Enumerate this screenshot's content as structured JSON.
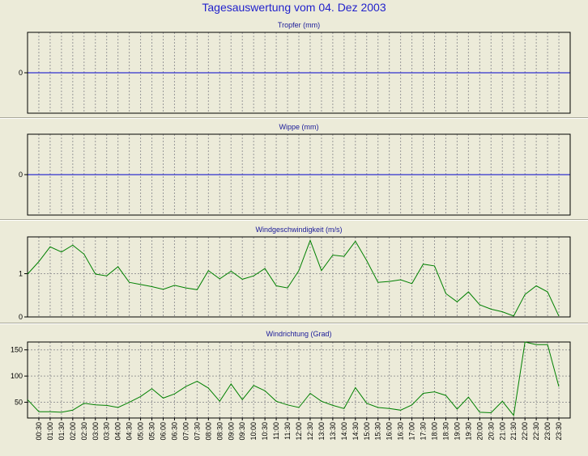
{
  "title": "Tagesauswertung vom 04. Dez 2003",
  "colors": {
    "title": "#2222cc",
    "zero_line": "#0000cc",
    "series": "#008000",
    "grid": "#999999",
    "background": "#ecebd9"
  },
  "chart_data": [
    {
      "type": "line",
      "title": "Tropfer (mm)",
      "ylim": [
        -1,
        1
      ],
      "yticks": [
        0
      ],
      "grid": true,
      "series": [
        {
          "values": [
            0,
            0
          ]
        }
      ]
    },
    {
      "type": "line",
      "title": "Wippe (mm)",
      "ylim": [
        -1,
        1
      ],
      "yticks": [
        0
      ],
      "grid": true,
      "series": [
        {
          "values": [
            0,
            0
          ]
        }
      ]
    },
    {
      "type": "line",
      "title": "Windgeschwindigkeit (m/s)",
      "ylim": [
        0,
        1.85
      ],
      "yticks": [
        0,
        1
      ],
      "grid": true,
      "series": [
        {
          "values": [
            0.99,
            1.28,
            1.62,
            1.5,
            1.66,
            1.45,
            0.99,
            0.95,
            1.16,
            0.8,
            0.75,
            0.7,
            0.64,
            0.73,
            0.67,
            0.63,
            1.07,
            0.88,
            1.06,
            0.87,
            0.95,
            1.12,
            0.72,
            0.67,
            1.07,
            1.77,
            1.07,
            1.43,
            1.4,
            1.75,
            1.3,
            0.8,
            0.82,
            0.86,
            0.77,
            1.22,
            1.18,
            0.54,
            0.35,
            0.58,
            0.28,
            0.18,
            0.12,
            0.02,
            0.52,
            0.72,
            0.58,
            0.02
          ]
        }
      ]
    },
    {
      "type": "line",
      "title": "Windrichtung (Grad)",
      "ylim": [
        20,
        165
      ],
      "yticks": [
        50,
        100,
        150
      ],
      "grid": true,
      "series": [
        {
          "values": [
            55,
            32,
            32,
            31,
            35,
            48,
            45,
            44,
            40,
            50,
            61,
            76,
            58,
            66,
            80,
            90,
            77,
            52,
            85,
            55,
            82,
            72,
            52,
            45,
            40,
            67,
            52,
            44,
            38,
            78,
            48,
            40,
            38,
            35,
            45,
            67,
            70,
            63,
            37,
            60,
            31,
            30,
            52,
            25,
            165,
            160,
            160,
            80
          ]
        }
      ]
    }
  ],
  "x_labels": [
    "00:30",
    "01:00",
    "01:30",
    "02:00",
    "02:30",
    "03:00",
    "03:30",
    "04:00",
    "04:30",
    "05:00",
    "05:30",
    "06:00",
    "06:30",
    "07:00",
    "07:30",
    "08:00",
    "08:30",
    "09:00",
    "09:30",
    "10:00",
    "10:30",
    "11:00",
    "11:30",
    "12:00",
    "12:30",
    "13:00",
    "13:30",
    "14:00",
    "14:30",
    "15:00",
    "15:30",
    "16:00",
    "16:30",
    "17:00",
    "17:30",
    "18:00",
    "18:30",
    "19:00",
    "19:30",
    "20:00",
    "20:30",
    "21:00",
    "21:30",
    "22:00",
    "22:30",
    "23:00",
    "23:30"
  ]
}
